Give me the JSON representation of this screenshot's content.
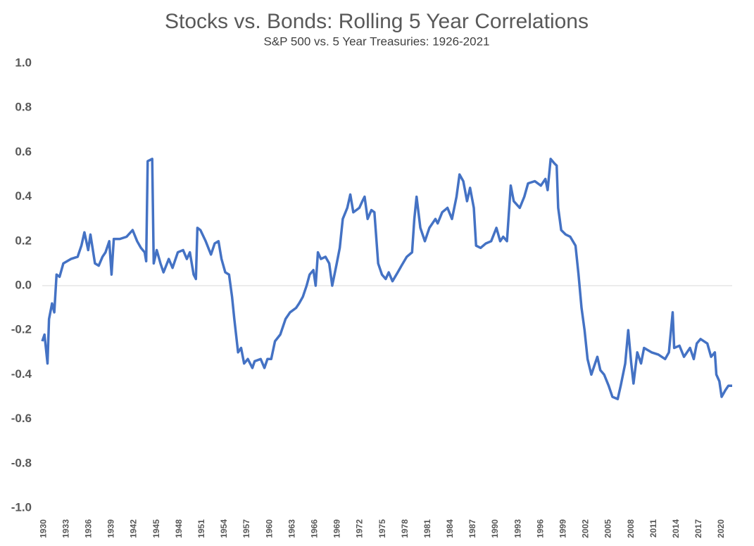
{
  "chart_data": {
    "type": "line",
    "title": "Stocks vs. Bonds: Rolling 5 Year Correlations",
    "subtitle": "S&P 500 vs. 5 Year Treasuries: 1926-2021",
    "color": "#4472c4",
    "x": [
      1929.8,
      1930.1,
      1930.5,
      1930.7,
      1931.1,
      1931.4,
      1931.7,
      1932.1,
      1932.6,
      1933.6,
      1934.5,
      1935.0,
      1935.4,
      1935.9,
      1936.2,
      1936.8,
      1937.3,
      1937.8,
      1938.2,
      1938.7,
      1939.0,
      1939.3,
      1940.1,
      1941.0,
      1941.8,
      1942.4,
      1942.9,
      1943.4,
      1943.6,
      1943.8,
      1944.4,
      1944.6,
      1945.0,
      1945.5,
      1945.9,
      1946.6,
      1947.1,
      1947.8,
      1948.5,
      1949.0,
      1949.4,
      1949.9,
      1950.2,
      1950.4,
      1950.8,
      1951.5,
      1952.2,
      1952.7,
      1953.2,
      1953.6,
      1954.1,
      1954.6,
      1955.0,
      1955.3,
      1955.8,
      1956.2,
      1956.6,
      1957.1,
      1957.7,
      1958.0,
      1958.8,
      1959.3,
      1959.7,
      1960.2,
      1960.7,
      1961.4,
      1962.1,
      1962.7,
      1963.5,
      1963.9,
      1964.4,
      1964.9,
      1965.3,
      1965.8,
      1966.1,
      1966.4,
      1966.8,
      1967.4,
      1967.9,
      1968.3,
      1968.9,
      1969.3,
      1969.7,
      1970.3,
      1970.7,
      1971.1,
      1971.9,
      1972.3,
      1972.6,
      1973.0,
      1973.5,
      1973.9,
      1974.4,
      1974.9,
      1975.4,
      1975.8,
      1976.3,
      1977.0,
      1977.5,
      1978.2,
      1978.9,
      1979.2,
      1979.5,
      1980.0,
      1980.6,
      1981.2,
      1982.0,
      1982.3,
      1982.9,
      1983.6,
      1984.2,
      1984.8,
      1985.2,
      1985.7,
      1986.2,
      1986.6,
      1987.1,
      1987.4,
      1988.0,
      1988.7,
      1989.4,
      1990.1,
      1990.6,
      1991.0,
      1991.5,
      1992.0,
      1992.4,
      1993.2,
      1993.8,
      1994.3,
      1995.2,
      1996.0,
      1996.6,
      1996.9,
      1997.3,
      1997.8,
      1998.1,
      1998.3,
      1998.7,
      1999.3,
      1999.9,
      2000.6,
      2001.0,
      2001.4,
      2001.8,
      2002.2,
      2002.7,
      2003.2,
      2003.5,
      2003.9,
      2004.4,
      2005.0,
      2005.5,
      2006.2,
      2006.6,
      2007.2,
      2007.6,
      2008.0,
      2008.3,
      2008.8,
      2009.3,
      2009.7,
      2010.7,
      2011.6,
      2012.5,
      2013.0,
      2013.5,
      2013.7,
      2014.4,
      2015.0,
      2015.8,
      2016.3,
      2016.7,
      2017.2,
      2018.1,
      2018.6,
      2019.1,
      2019.3,
      2019.7,
      2020.0,
      2020.5,
      2020.9,
      2021.4
    ],
    "values": [
      -0.25,
      -0.22,
      -0.35,
      -0.15,
      -0.08,
      -0.12,
      0.05,
      0.04,
      0.1,
      0.12,
      0.13,
      0.18,
      0.24,
      0.16,
      0.23,
      0.1,
      0.09,
      0.13,
      0.15,
      0.2,
      0.05,
      0.21,
      0.21,
      0.22,
      0.25,
      0.2,
      0.17,
      0.15,
      0.11,
      0.56,
      0.57,
      0.1,
      0.16,
      0.1,
      0.06,
      0.12,
      0.08,
      0.15,
      0.16,
      0.12,
      0.15,
      0.05,
      0.03,
      0.26,
      0.25,
      0.2,
      0.14,
      0.19,
      0.2,
      0.12,
      0.06,
      0.05,
      -0.05,
      -0.15,
      -0.3,
      -0.28,
      -0.35,
      -0.33,
      -0.37,
      -0.34,
      -0.33,
      -0.37,
      -0.33,
      -0.33,
      -0.25,
      -0.22,
      -0.15,
      -0.12,
      -0.1,
      -0.08,
      -0.05,
      0.0,
      0.05,
      0.07,
      0.0,
      0.15,
      0.12,
      0.13,
      0.1,
      0.0,
      0.1,
      0.17,
      0.3,
      0.35,
      0.41,
      0.33,
      0.35,
      0.38,
      0.4,
      0.3,
      0.34,
      0.33,
      0.1,
      0.05,
      0.03,
      0.06,
      0.02,
      0.06,
      0.09,
      0.13,
      0.15,
      0.3,
      0.4,
      0.26,
      0.2,
      0.26,
      0.3,
      0.28,
      0.33,
      0.35,
      0.3,
      0.4,
      0.5,
      0.47,
      0.38,
      0.44,
      0.35,
      0.18,
      0.17,
      0.19,
      0.2,
      0.26,
      0.2,
      0.22,
      0.2,
      0.45,
      0.38,
      0.35,
      0.4,
      0.46,
      0.47,
      0.45,
      0.48,
      0.43,
      0.57,
      0.55,
      0.54,
      0.35,
      0.25,
      0.23,
      0.22,
      0.18,
      0.05,
      -0.1,
      -0.2,
      -0.33,
      -0.4,
      -0.35,
      -0.32,
      -0.38,
      -0.4,
      -0.45,
      -0.5,
      -0.51,
      -0.45,
      -0.35,
      -0.2,
      -0.35,
      -0.44,
      -0.3,
      -0.35,
      -0.28,
      -0.3,
      -0.31,
      -0.33,
      -0.3,
      -0.12,
      -0.28,
      -0.27,
      -0.32,
      -0.28,
      -0.33,
      -0.26,
      -0.24,
      -0.26,
      -0.32,
      -0.3,
      -0.4,
      -0.43,
      -0.5,
      -0.47,
      -0.45,
      -0.45
    ],
    "xlim": [
      1929.8,
      2021.4
    ],
    "xticks": [
      1930,
      1933,
      1936,
      1939,
      1942,
      1945,
      1948,
      1951,
      1954,
      1957,
      1960,
      1963,
      1966,
      1969,
      1972,
      1975,
      1978,
      1981,
      1984,
      1987,
      1990,
      1993,
      1996,
      1999,
      2002,
      2005,
      2008,
      2011,
      2014,
      2017,
      2020
    ],
    "ylim": [
      -1,
      1
    ],
    "yticks": [
      {
        "value": -1,
        "label": "-1.0"
      },
      -0.8,
      -0.6,
      -0.4,
      -0.2,
      {
        "value": 0,
        "label": "0.0"
      },
      0.2,
      0.4,
      0.6,
      0.8,
      {
        "value": 1,
        "label": "1.0"
      }
    ]
  }
}
